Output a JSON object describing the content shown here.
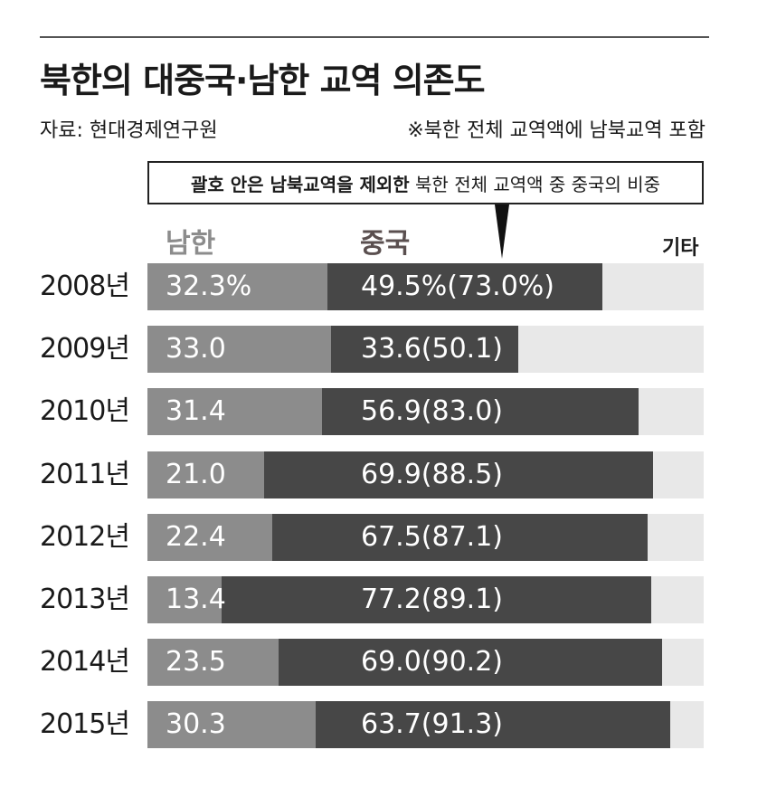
{
  "title": "북한의 대중국·남한 교역 의존도",
  "source": "자료: 현대경제연구원",
  "note": "※북한 전체 교역액에 남북교역 포함",
  "callout": {
    "strong": "괄호 안은 남북교역을 제외한",
    "rest": "북한 전체 교역액 중 중국의 비중"
  },
  "chart_data": {
    "type": "bar",
    "stacked": true,
    "orientation": "horizontal",
    "unit": "%",
    "categories": [
      "2008년",
      "2009년",
      "2010년",
      "2011년",
      "2012년",
      "2013년",
      "2014년",
      "2015년"
    ],
    "series": [
      {
        "name": "남한",
        "values": [
          32.3,
          33.0,
          31.4,
          21.0,
          22.4,
          13.4,
          23.5,
          30.3
        ],
        "labels": [
          "32.3%",
          "33.0",
          "31.4",
          "21.0",
          "22.4",
          "13.4",
          "23.5",
          "30.3"
        ],
        "color": "#8c8c8c"
      },
      {
        "name": "중국",
        "values": [
          49.5,
          33.6,
          56.9,
          69.9,
          67.5,
          77.2,
          69.0,
          63.7
        ],
        "labels": [
          "49.5%(73.0%)",
          "33.6(50.1)",
          "56.9(83.0)",
          "69.9(88.5)",
          "67.5(87.1)",
          "77.2(89.1)",
          "69.0(90.2)",
          "63.7(91.3)"
        ],
        "color": "#474747"
      },
      {
        "name": "기타",
        "color": "#e8e8e8"
      }
    ],
    "china_excluding_inter_korean": [
      73.0,
      50.1,
      83.0,
      88.5,
      87.1,
      89.1,
      90.2,
      91.3
    ],
    "xlim": [
      0,
      100
    ]
  }
}
